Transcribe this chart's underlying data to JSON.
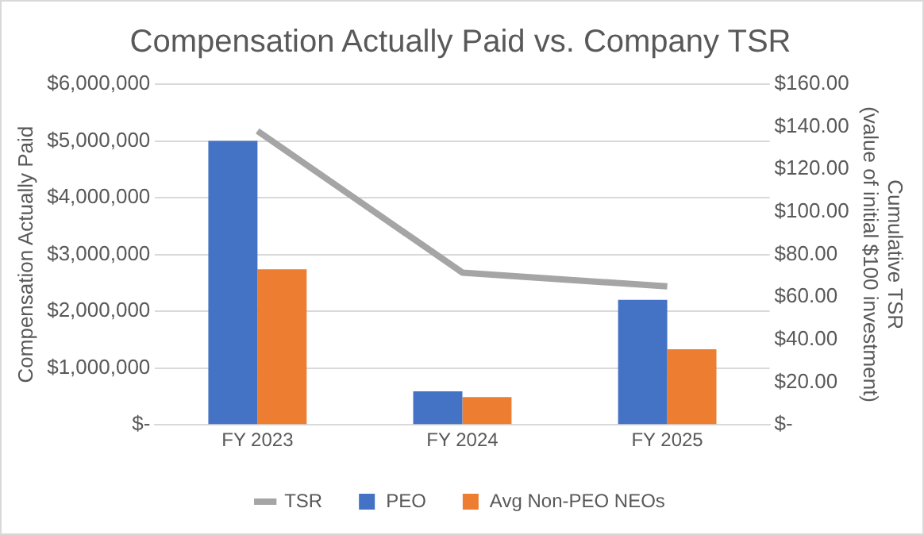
{
  "chart_data": {
    "type": "bar",
    "title": "Compensation Actually Paid vs. Company TSR",
    "ylabel": "Compensation Actually Paid",
    "y2label": "Cumulative TSR\n(value of initial $100 investment)",
    "categories": [
      "FY 2023",
      "FY 2024",
      "FY 2025"
    ],
    "series": [
      {
        "name": "PEO",
        "color": "#4472c4",
        "values": [
          5000000,
          590000,
          2200000
        ]
      },
      {
        "name": "Avg Non-PEO NEOs",
        "color": "#ed7d31",
        "values": [
          2740000,
          490000,
          1330000
        ]
      },
      {
        "name": "TSR",
        "type": "line",
        "axis": "y2",
        "color": "#a5a5a5",
        "values": [
          138,
          71.5,
          65
        ]
      }
    ],
    "ylim": [
      0,
      6000000
    ],
    "yticks": [
      {
        "value": 0,
        "label": "$-"
      },
      {
        "value": 1000000,
        "label": "$1,000,000"
      },
      {
        "value": 2000000,
        "label": "$2,000,000"
      },
      {
        "value": 3000000,
        "label": "$3,000,000"
      },
      {
        "value": 4000000,
        "label": "$4,000,000"
      },
      {
        "value": 5000000,
        "label": "$5,000,000"
      },
      {
        "value": 6000000,
        "label": "$6,000,000"
      }
    ],
    "y2lim": [
      0,
      160
    ],
    "y2ticks": [
      {
        "value": 0,
        "label": "$-"
      },
      {
        "value": 20,
        "label": "$20.00"
      },
      {
        "value": 40,
        "label": "$40.00"
      },
      {
        "value": 60,
        "label": "$60.00"
      },
      {
        "value": 80,
        "label": "$80.00"
      },
      {
        "value": 100,
        "label": "$100.00"
      },
      {
        "value": 120,
        "label": "$120.00"
      },
      {
        "value": 140,
        "label": "$140.00"
      },
      {
        "value": 160,
        "label": "$160.00"
      }
    ],
    "grid": "y",
    "legend": "bottom",
    "marker": "none",
    "line_style": "solid"
  }
}
